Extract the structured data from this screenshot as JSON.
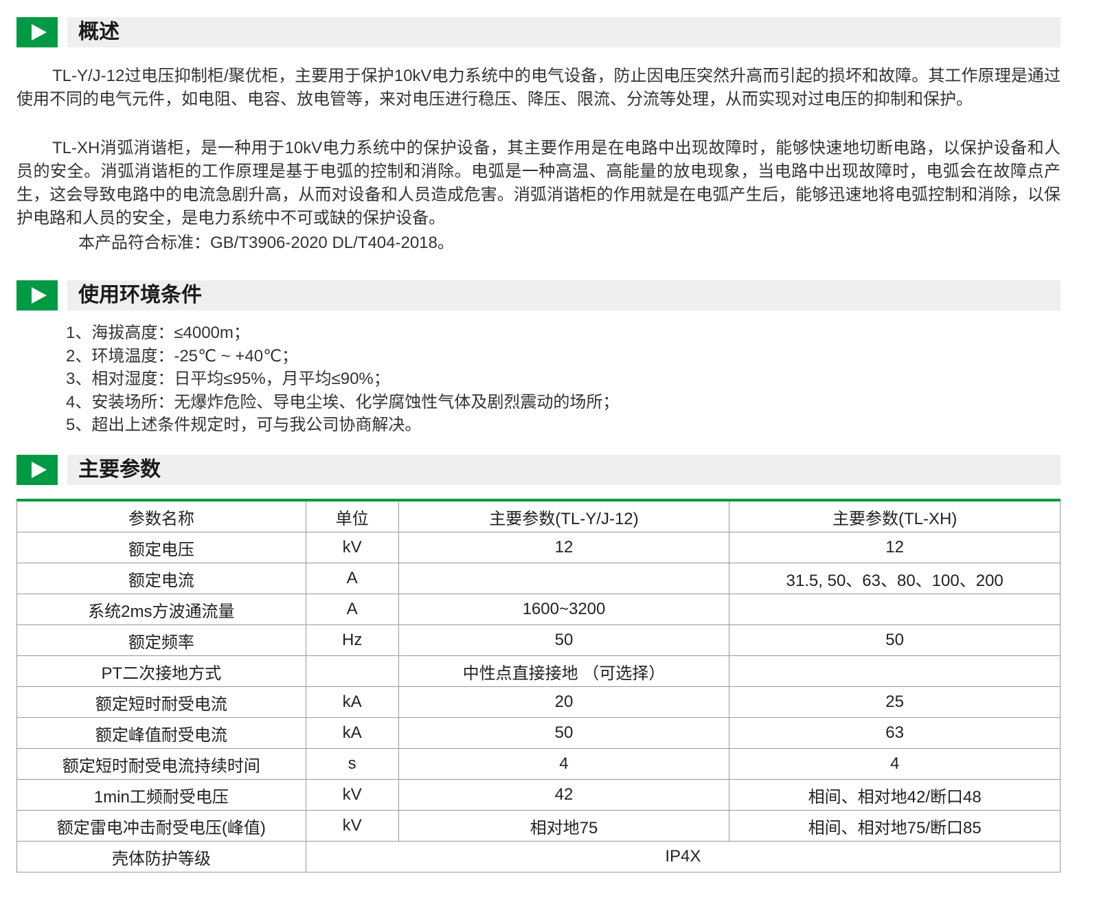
{
  "sections": [
    {
      "title": "概述"
    },
    {
      "title": "使用环境条件"
    },
    {
      "title": "主要参数"
    }
  ],
  "overview": {
    "paragraphs": [
      "TL-Y/J-12过电压抑制柜/聚优柜，主要用于保护10kV电力系统中的电气设备，防止因电压突然升高而引起的损坏和故障。其工作原理是通过使用不同的电气元件，如电阻、电容、放电管等，来对电压进行稳压、降压、限流、分流等处理，从而实现对过电压的抑制和保护。",
      "TL-XH消弧消谐柜，是一种用于10kV电力系统中的保护设备，其主要作用是在电路中出现故障时，能够快速地切断电路，以保护设备和人员的安全。消弧消谐柜的工作原理是基于电弧的控制和消除。电弧是一种高温、高能量的放电现象，当电路中出现故障时，电弧会在故障点产生，这会导致电路中的电流急剧升高，从而对设备和人员造成危害。消弧消谐柜的作用就是在电弧产生后，能够迅速地将电弧控制和消除，以保护电路和人员的安全，是电力系统中不可或缺的保护设备。"
    ],
    "standard": "本产品符合标准：GB/T3906-2020  DL/T404-2018。"
  },
  "conditions": [
    "1、海拔高度：≤4000m；",
    "2、环境温度：-25℃ ~ +40℃；",
    "3、相对湿度：日平均≤95%，月平均≤90%；",
    "4、安装场所：无爆炸危险、导电尘埃、化学腐蚀性气体及剧烈震动的场所；",
    "5、超出上述条件规定时，可与我公司协商解决。"
  ],
  "table": {
    "headers": [
      "参数名称",
      "单位",
      "主要参数(TL-Y/J-12)",
      "主要参数(TL-XH)"
    ],
    "rows": [
      [
        "额定电压",
        "kV",
        "12",
        "12"
      ],
      [
        "额定电流",
        "A",
        "",
        "31.5, 50、63、80、100、200"
      ],
      [
        "系统2ms方波通流量",
        "A",
        "1600~3200",
        ""
      ],
      [
        "额定频率",
        "Hz",
        "50",
        "50"
      ],
      [
        "PT二次接地方式",
        "",
        "中性点直接接地 （可选择）",
        ""
      ],
      [
        "额定短时耐受电流",
        "kA",
        "20",
        "25"
      ],
      [
        "额定峰值耐受电流",
        "kA",
        "50",
        "63"
      ],
      [
        "额定短时耐受电流持续时间",
        "s",
        "4",
        "4"
      ],
      [
        "1min工频耐受电压",
        "kV",
        "42",
        "相间、相对地42/断口48"
      ],
      [
        "额定雷电冲击耐受电压(峰值)",
        "kV",
        "相对地75",
        "相间、相对地75/断口85"
      ]
    ],
    "last_row": [
      "壳体防护等级",
      "IP4X"
    ]
  },
  "colors": {
    "accent": "#009a44",
    "header_bar": "#efefef",
    "border": "#999999"
  }
}
